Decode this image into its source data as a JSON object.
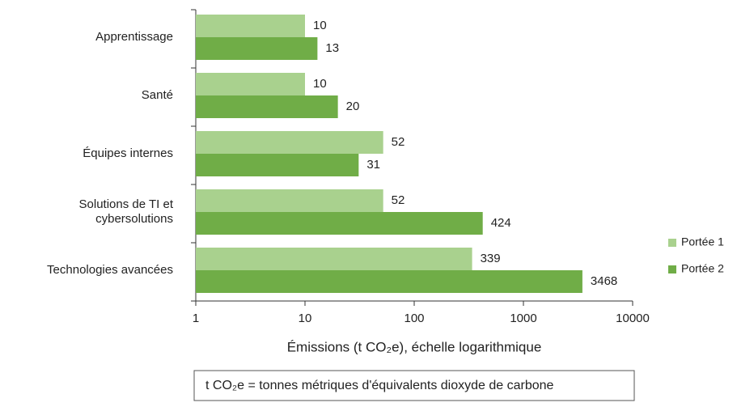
{
  "chart_data": {
    "type": "bar",
    "orientation": "horizontal",
    "categories": [
      "Apprentissage",
      "Santé",
      "Équipes internes",
      "Solutions de TI et\ncybersolutions",
      "Technologies avancées"
    ],
    "series": [
      {
        "name": "Portée 1",
        "color": "#a9d18e",
        "values": [
          10,
          10,
          52,
          52,
          339
        ]
      },
      {
        "name": "Portée 2",
        "color": "#70ad47",
        "values": [
          13,
          20,
          31,
          424,
          3468
        ]
      }
    ],
    "xlabel": "Émissions (t CO₂e), échelle logarithmique",
    "xlim": [
      1,
      10000
    ],
    "xticks": [
      1,
      10,
      100,
      1000,
      10000
    ],
    "log_scale": true,
    "legend": "right",
    "label_color": "#70ad47",
    "note": "t CO₂e = tonnes métriques d'équivalents dioxyde de carbone"
  }
}
